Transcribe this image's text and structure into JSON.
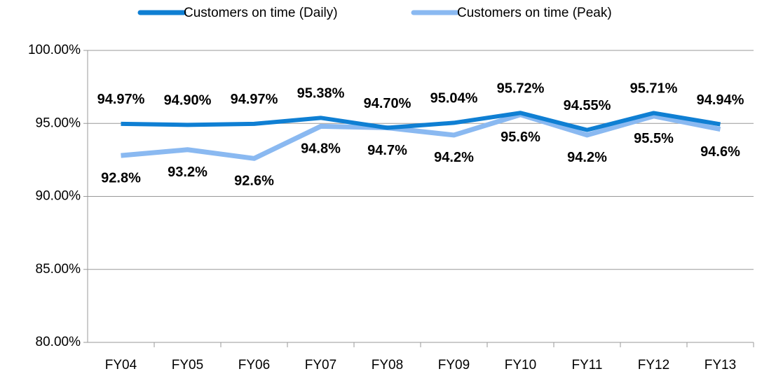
{
  "chart_data": {
    "type": "line",
    "categories": [
      "FY04",
      "FY05",
      "FY06",
      "FY07",
      "FY08",
      "FY09",
      "FY10",
      "FY11",
      "FY12",
      "FY13"
    ],
    "series": [
      {
        "name": "Customers on time (Daily)",
        "color": "#0f7fd3",
        "values": [
          94.97,
          94.9,
          94.97,
          95.38,
          94.7,
          95.04,
          95.72,
          94.55,
          95.71,
          94.94
        ],
        "value_labels": [
          "94.97%",
          "94.90%",
          "94.97%",
          "95.38%",
          "94.70%",
          "95.04%",
          "95.72%",
          "94.55%",
          "95.71%",
          "94.94%"
        ]
      },
      {
        "name": "Customers on time (Peak)",
        "color": "#8ab9f1",
        "values": [
          92.8,
          93.2,
          92.6,
          94.8,
          94.7,
          94.2,
          95.6,
          94.2,
          95.5,
          94.6
        ],
        "value_labels": [
          "92.8%",
          "93.2%",
          "92.6%",
          "94.8%",
          "94.7%",
          "94.2%",
          "95.6%",
          "94.2%",
          "95.5%",
          "94.6%"
        ]
      }
    ],
    "ylim": [
      80,
      100
    ],
    "yticks": [
      {
        "value": 80,
        "label": "80.00%"
      },
      {
        "value": 85,
        "label": "85.00%"
      },
      {
        "value": 90,
        "label": "90.00%"
      },
      {
        "value": 95,
        "label": "95.00%"
      },
      {
        "value": 100,
        "label": "100.00%"
      }
    ],
    "grid": true,
    "legend": "top"
  }
}
